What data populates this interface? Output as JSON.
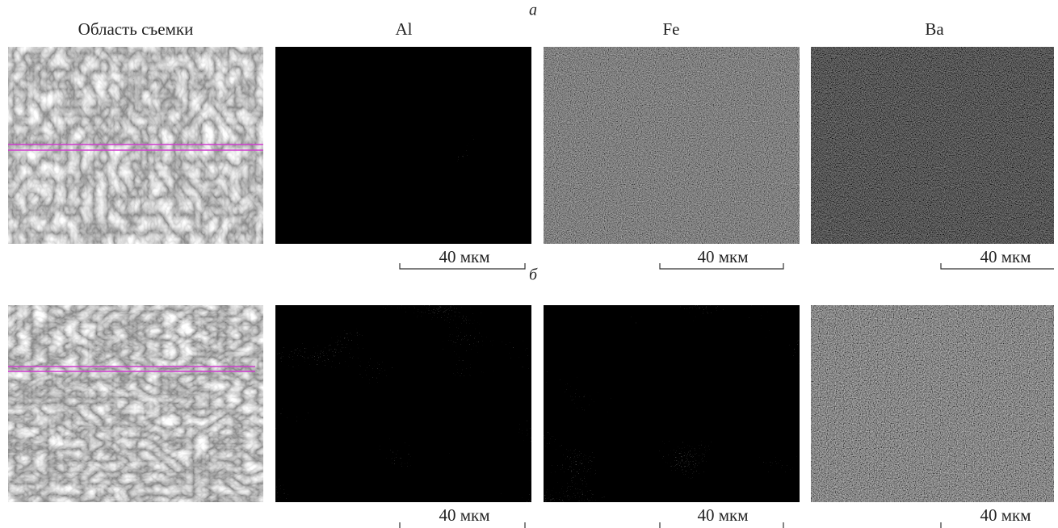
{
  "figure": {
    "column_headers": [
      "Область съемки",
      "Al",
      "Fe",
      "Ba"
    ],
    "rows": [
      {
        "label": "а",
        "scale_labels": [
          "40 мкм",
          "40 мкм",
          "40 мкм"
        ]
      },
      {
        "label": "б",
        "scale_labels": [
          "40 мкм",
          "40 мкм",
          "40 мкм"
        ]
      }
    ]
  }
}
